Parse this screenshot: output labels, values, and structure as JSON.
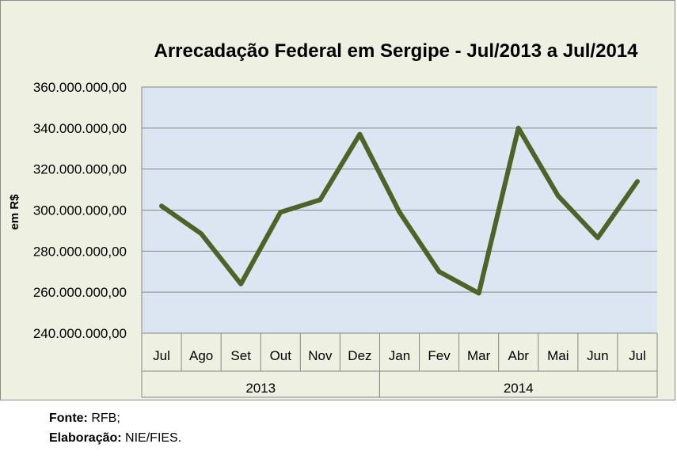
{
  "chart_data": {
    "type": "line",
    "title": "Arrecadação Federal em Sergipe - Jul/2013 a Jul/2014",
    "ylabel": "em R$",
    "xlabel": "",
    "categories": [
      "Jul",
      "Ago",
      "Set",
      "Out",
      "Nov",
      "Dez",
      "Jan",
      "Fev",
      "Mar",
      "Abr",
      "Mai",
      "Jun",
      "Jul"
    ],
    "groups": [
      {
        "label": "2013",
        "start": 0,
        "end": 5
      },
      {
        "label": "2014",
        "start": 6,
        "end": 12
      }
    ],
    "series": [
      {
        "name": "Arrecadação Federal",
        "values": [
          302000000,
          288500000,
          264000000,
          299000000,
          305000000,
          337000000,
          299000000,
          270000000,
          259500000,
          340000000,
          307000000,
          286500000,
          314000000
        ]
      }
    ],
    "ylim": [
      240000000,
      360000000
    ],
    "yticks": [
      240000000,
      260000000,
      280000000,
      300000000,
      320000000,
      340000000,
      360000000
    ],
    "ytick_labels": [
      "240.000.000,00",
      "260.000.000,00",
      "280.000.000,00",
      "300.000.000,00",
      "320.000.000,00",
      "340.000.000,00",
      "360.000.000,00"
    ],
    "grid": true,
    "colors": {
      "line": "#4f6228",
      "plot_bg": "#dce6f2",
      "chart_bg": "#eef0e2",
      "grid": "#868686"
    }
  },
  "footer": {
    "source_label": "Fonte:",
    "source_value": "RFB;",
    "credit_label": "Elaboração:",
    "credit_value": "NIE/FIES."
  }
}
